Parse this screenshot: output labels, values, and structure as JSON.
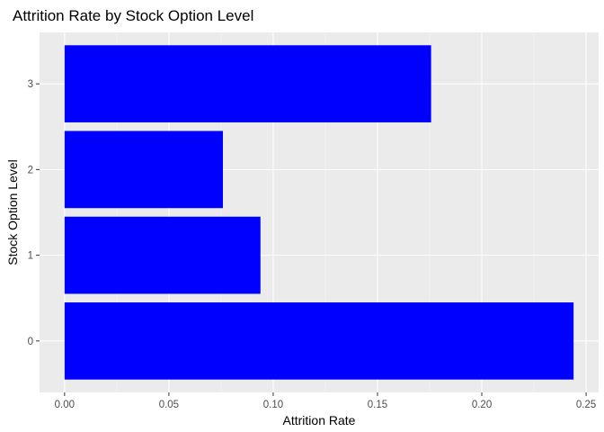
{
  "chart_data": {
    "type": "bar",
    "orientation": "horizontal",
    "title": "Attrition Rate by Stock Option Level",
    "xlabel": "Attrition Rate",
    "ylabel": "Stock Option Level",
    "categories": [
      "0",
      "1",
      "2",
      "3"
    ],
    "values": [
      0.244,
      0.0939,
      0.0759,
      0.1757
    ],
    "xlim": [
      -0.012,
      0.256
    ],
    "x_ticks": [
      0.0,
      0.05,
      0.1,
      0.15,
      0.2,
      0.25
    ],
    "x_tick_labels": [
      "0.00",
      "0.05",
      "0.10",
      "0.15",
      "0.20",
      "0.25"
    ],
    "grid": true,
    "legend": "none",
    "colors": {
      "bar": "#0000ff",
      "panel": "#ebebeb",
      "grid_major": "#ffffff",
      "grid_minor": "#f5f5f5",
      "tick": "#333333"
    }
  }
}
